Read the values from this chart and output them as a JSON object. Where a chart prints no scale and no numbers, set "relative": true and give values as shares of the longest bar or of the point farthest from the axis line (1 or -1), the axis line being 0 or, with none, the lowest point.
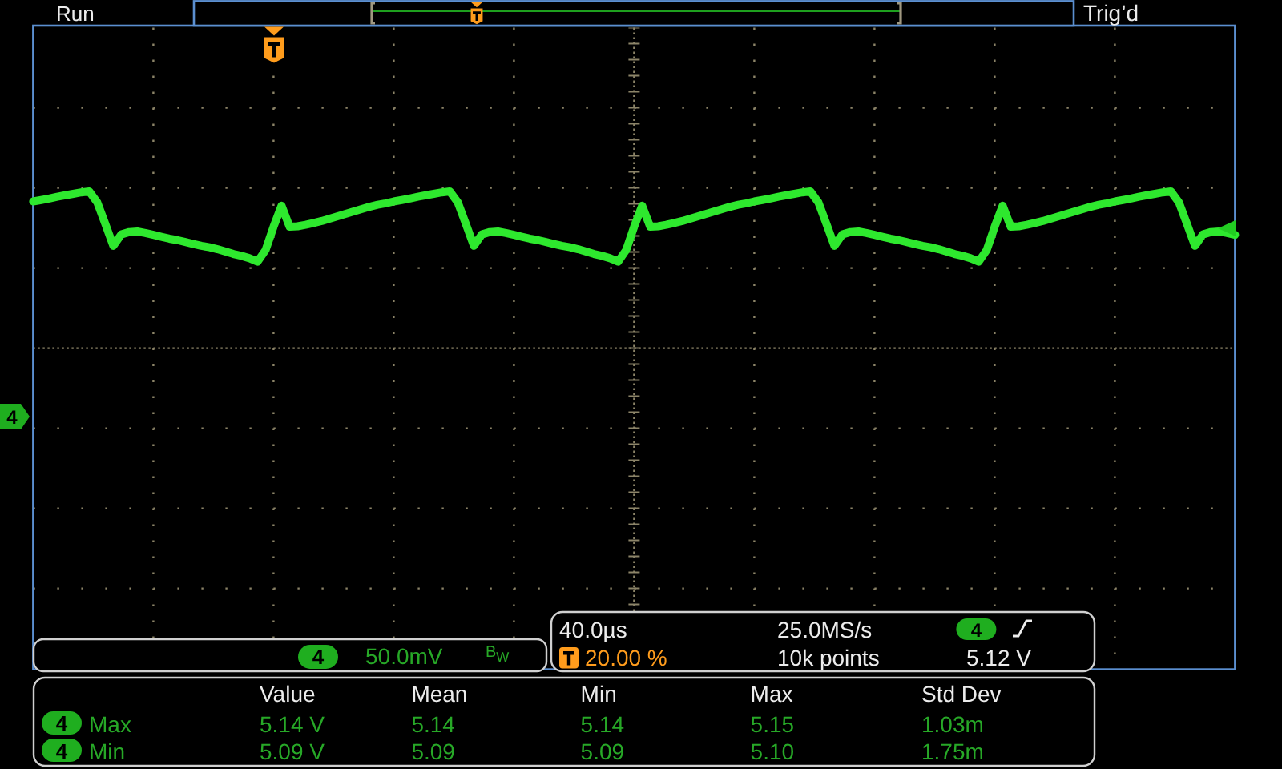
{
  "chart_data": {
    "type": "line",
    "relative": true,
    "grid": true,
    "categories": [
      null,
      null,
      null,
      null,
      null,
      null,
      null,
      null,
      null,
      null,
      null,
      null,
      null,
      null,
      null,
      null,
      null,
      null,
      null,
      null,
      null,
      null,
      null,
      null,
      null,
      null,
      null,
      null,
      null,
      null,
      null,
      null,
      null,
      null,
      null,
      null,
      null,
      null,
      null,
      null,
      null,
      null,
      null,
      null,
      null,
      null,
      null,
      null,
      null,
      null,
      null,
      null,
      null,
      null,
      null,
      null,
      null,
      null,
      null,
      null,
      null,
      null,
      null,
      null,
      null,
      null,
      null,
      null,
      null,
      null,
      null,
      null,
      null,
      null,
      null,
      null,
      null,
      null,
      null,
      null,
      null,
      null,
      null,
      null,
      null,
      null,
      null,
      null,
      null,
      null,
      null,
      null,
      null,
      null,
      null,
      null,
      null,
      null,
      null,
      null,
      null,
      null,
      null,
      null,
      null,
      null,
      null,
      null,
      null,
      null,
      null,
      null,
      null,
      null,
      null,
      null,
      null,
      null,
      null,
      null,
      null,
      null,
      null,
      null,
      null,
      null,
      null,
      null,
      null,
      null,
      null,
      null,
      null,
      null,
      null,
      null,
      null,
      null,
      null,
      null,
      null,
      null,
      null,
      null,
      null,
      null,
      null,
      null,
      null,
      null,
      null
    ],
    "series": [
      {
        "color": "#2ee82e",
        "values": [
          0.979,
          0.982,
          0.985,
          0.989,
          0.992,
          0.995,
          0.998,
          1,
          0.977,
          0.932,
          0.886,
          0.91,
          0.915,
          0.916,
          0.913,
          0.909,
          0.905,
          0.901,
          0.898,
          0.894,
          0.89,
          0.886,
          0.883,
          0.879,
          0.874,
          0.869,
          0.865,
          0.86,
          0.853,
          0.877,
          0.926,
          0.97,
          0.926,
          0.927,
          0.93,
          0.934,
          0.938,
          0.943,
          0.948,
          0.953,
          0.958,
          0.963,
          0.968,
          0.972,
          0.975,
          0.979,
          0.982,
          0.985,
          0.989,
          0.992,
          0.995,
          0.998,
          1,
          0.977,
          0.932,
          0.886,
          0.91,
          0.915,
          0.916,
          0.913,
          0.909,
          0.905,
          0.901,
          0.898,
          0.894,
          0.89,
          0.886,
          0.883,
          0.879,
          0.874,
          0.869,
          0.865,
          0.86,
          0.853,
          0.877,
          0.926,
          0.97,
          0.926,
          0.927,
          0.93,
          0.934,
          0.938,
          0.943,
          0.948,
          0.953,
          0.958,
          0.963,
          0.968,
          0.972,
          0.975,
          0.979,
          0.982,
          0.985,
          0.989,
          0.992,
          0.995,
          0.998,
          1,
          0.977,
          0.932,
          0.886,
          0.91,
          0.915,
          0.916,
          0.913,
          0.909,
          0.905,
          0.901,
          0.898,
          0.894,
          0.89,
          0.886,
          0.883,
          0.879,
          0.874,
          0.869,
          0.865,
          0.86,
          0.853,
          0.877,
          0.926,
          0.97,
          0.926,
          0.927,
          0.93,
          0.934,
          0.938,
          0.943,
          0.948,
          0.953,
          0.958,
          0.963,
          0.968,
          0.972,
          0.975,
          0.979,
          0.982,
          0.985,
          0.989,
          0.992,
          0.995,
          0.998,
          1,
          0.977,
          0.932,
          0.886,
          0.91,
          0.915,
          0.916,
          0.913,
          0.909
        ]
      }
    ],
    "annotations": [
      "Run",
      "Trig’d",
      "4",
      "4",
      "50.0mV",
      "B$_{W}$",
      "40.0µs",
      "20.00 %",
      "25.0MS/s",
      "10k points",
      "4",
      "5.12 V",
      "Value",
      "Mean",
      "Min",
      "Max",
      "Std Dev",
      "4",
      "Max",
      "5.14 V",
      "5.14",
      "5.14",
      "5.15",
      "1.03m",
      "4",
      "Min",
      "5.09 V",
      "5.09",
      "5.09",
      "5.10",
      "1.75m"
    ]
  }
}
